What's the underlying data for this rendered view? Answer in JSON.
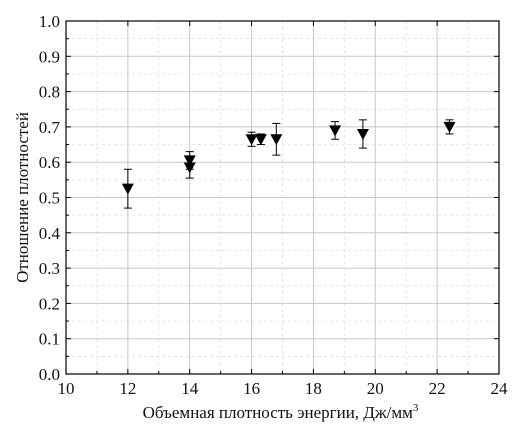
{
  "chart_data": {
    "type": "scatter",
    "xlabel": "Объемная плотность энергии, Дж/мм",
    "xlabel_sup": "3",
    "ylabel": "Отношение плотностей",
    "xlim": [
      10,
      24
    ],
    "ylim": [
      0,
      1.0
    ],
    "x_ticks": [
      "10",
      "12",
      "14",
      "16",
      "18",
      "20",
      "22",
      "24"
    ],
    "y_ticks": [
      "0.0",
      "0.1",
      "0.2",
      "0.3",
      "0.4",
      "0.5",
      "0.6",
      "0.7",
      "0.8",
      "0.9",
      "1.0"
    ],
    "grid": true,
    "marker": "triangle-down",
    "marker_color": "#000000",
    "grid_color": "#c8c8c8",
    "points": [
      {
        "x": 12.0,
        "y": 0.525,
        "err": 0.055
      },
      {
        "x": 14.0,
        "y": 0.605,
        "err": 0.025
      },
      {
        "x": 14.0,
        "y": 0.585,
        "err": 0.03
      },
      {
        "x": 16.0,
        "y": 0.665,
        "err": 0.02
      },
      {
        "x": 16.3,
        "y": 0.665,
        "err": 0.015
      },
      {
        "x": 16.8,
        "y": 0.665,
        "err": 0.045
      },
      {
        "x": 18.7,
        "y": 0.69,
        "err": 0.025
      },
      {
        "x": 19.6,
        "y": 0.68,
        "err": 0.04
      },
      {
        "x": 22.4,
        "y": 0.7,
        "err": 0.02
      }
    ]
  }
}
